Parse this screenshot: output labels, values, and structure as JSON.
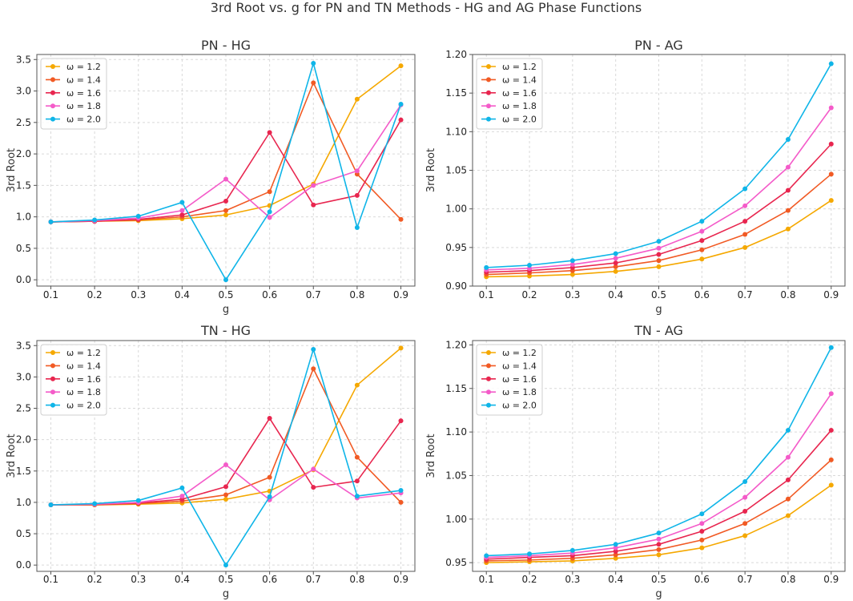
{
  "figure": {
    "title": "3rd Root vs. g for PN and TN Methods - HG and AG Phase Functions"
  },
  "series_colors": [
    "#f5a800",
    "#f15a24",
    "#e8264f",
    "#f45bc9",
    "#0fb5e8"
  ],
  "chart_data": [
    {
      "type": "line",
      "title": "PN - HG",
      "xlabel": "g",
      "ylabel": "3rd Root",
      "x": [
        0.1,
        0.2,
        0.3,
        0.4,
        0.5,
        0.6,
        0.7,
        0.8,
        0.9
      ],
      "x_ticks": [
        "0.1",
        "0.2",
        "0.3",
        "0.4",
        "0.5",
        "0.6",
        "0.7",
        "0.8",
        "0.9"
      ],
      "y_ticks": [
        "0.0",
        "0.5",
        "1.0",
        "1.5",
        "2.0",
        "2.5",
        "3.0",
        "3.5"
      ],
      "y_tick_values": [
        0,
        0.5,
        1,
        1.5,
        2,
        2.5,
        3,
        3.5
      ],
      "ylim": [
        -0.1,
        3.58
      ],
      "legend_position": "top-left",
      "series": [
        {
          "name": "ω = 1.2",
          "values": [
            0.92,
            0.93,
            0.94,
            0.97,
            1.03,
            1.18,
            1.52,
            2.87,
            3.4
          ]
        },
        {
          "name": "ω = 1.4",
          "values": [
            0.92,
            0.93,
            0.95,
            1.0,
            1.1,
            1.4,
            3.13,
            1.68,
            0.96
          ]
        },
        {
          "name": "ω = 1.6",
          "values": [
            0.92,
            0.93,
            0.96,
            1.03,
            1.25,
            2.34,
            1.19,
            1.34,
            2.54
          ]
        },
        {
          "name": "ω = 1.8",
          "values": [
            0.92,
            0.94,
            0.98,
            1.1,
            1.6,
            0.99,
            1.5,
            1.73,
            2.78
          ]
        },
        {
          "name": "ω = 2.0",
          "values": [
            0.92,
            0.95,
            1.01,
            1.23,
            0.0,
            1.08,
            3.44,
            0.83,
            2.79
          ]
        }
      ]
    },
    {
      "type": "line",
      "title": "PN - AG",
      "xlabel": "g",
      "ylabel": "3rd Root",
      "x": [
        0.1,
        0.2,
        0.3,
        0.4,
        0.5,
        0.6,
        0.7,
        0.8,
        0.9
      ],
      "x_ticks": [
        "0.1",
        "0.2",
        "0.3",
        "0.4",
        "0.5",
        "0.6",
        "0.7",
        "0.8",
        "0.9"
      ],
      "y_ticks": [
        "0.90",
        "0.95",
        "1.00",
        "1.05",
        "1.10",
        "1.15",
        "1.20"
      ],
      "y_tick_values": [
        0.9,
        0.95,
        1.0,
        1.05,
        1.1,
        1.15,
        1.2
      ],
      "ylim": [
        0.9,
        1.2
      ],
      "legend_position": "top-left",
      "series": [
        {
          "name": "ω = 1.2",
          "values": [
            0.912,
            0.913,
            0.915,
            0.919,
            0.925,
            0.935,
            0.95,
            0.974,
            1.011
          ]
        },
        {
          "name": "ω = 1.4",
          "values": [
            0.915,
            0.917,
            0.92,
            0.925,
            0.933,
            0.947,
            0.967,
            0.998,
            1.045
          ]
        },
        {
          "name": "ω = 1.6",
          "values": [
            0.918,
            0.92,
            0.924,
            0.93,
            0.941,
            0.959,
            0.984,
            1.024,
            1.084
          ]
        },
        {
          "name": "ω = 1.8",
          "values": [
            0.921,
            0.923,
            0.928,
            0.936,
            0.949,
            0.971,
            1.004,
            1.054,
            1.131
          ]
        },
        {
          "name": "ω = 2.0",
          "values": [
            0.924,
            0.927,
            0.933,
            0.942,
            0.958,
            0.984,
            1.026,
            1.09,
            1.188
          ]
        }
      ]
    },
    {
      "type": "line",
      "title": "TN - HG",
      "xlabel": "g",
      "ylabel": "3rd Root",
      "x": [
        0.1,
        0.2,
        0.3,
        0.4,
        0.5,
        0.6,
        0.7,
        0.8,
        0.9
      ],
      "x_ticks": [
        "0.1",
        "0.2",
        "0.3",
        "0.4",
        "0.5",
        "0.6",
        "0.7",
        "0.8",
        "0.9"
      ],
      "y_ticks": [
        "0.0",
        "0.5",
        "1.0",
        "1.5",
        "2.0",
        "2.5",
        "3.0",
        "3.5"
      ],
      "y_tick_values": [
        0,
        0.5,
        1,
        1.5,
        2,
        2.5,
        3,
        3.5
      ],
      "ylim": [
        -0.1,
        3.58
      ],
      "legend_position": "top-left",
      "series": [
        {
          "name": "ω = 1.2",
          "values": [
            0.96,
            0.96,
            0.97,
            0.99,
            1.05,
            1.18,
            1.52,
            2.87,
            3.46
          ]
        },
        {
          "name": "ω = 1.4",
          "values": [
            0.96,
            0.96,
            0.98,
            1.02,
            1.12,
            1.4,
            3.13,
            1.72,
            1.0
          ]
        },
        {
          "name": "ω = 1.6",
          "values": [
            0.96,
            0.97,
            0.99,
            1.05,
            1.25,
            2.34,
            1.24,
            1.34,
            2.3
          ]
        },
        {
          "name": "ω = 1.8",
          "values": [
            0.96,
            0.97,
            1.0,
            1.1,
            1.6,
            1.04,
            1.53,
            1.07,
            1.15
          ]
        },
        {
          "name": "ω = 2.0",
          "values": [
            0.96,
            0.98,
            1.03,
            1.23,
            0.0,
            1.09,
            3.44,
            1.1,
            1.19
          ]
        }
      ]
    },
    {
      "type": "line",
      "title": "TN - AG",
      "xlabel": "g",
      "ylabel": "3rd Root",
      "x": [
        0.1,
        0.2,
        0.3,
        0.4,
        0.5,
        0.6,
        0.7,
        0.8,
        0.9
      ],
      "x_ticks": [
        "0.1",
        "0.2",
        "0.3",
        "0.4",
        "0.5",
        "0.6",
        "0.7",
        "0.8",
        "0.9"
      ],
      "y_ticks": [
        "0.95",
        "1.00",
        "1.05",
        "1.10",
        "1.15",
        "1.20"
      ],
      "y_tick_values": [
        0.95,
        1.0,
        1.05,
        1.1,
        1.15,
        1.2
      ],
      "ylim": [
        0.94,
        1.205
      ],
      "legend_position": "top-left",
      "series": [
        {
          "name": "ω = 1.2",
          "values": [
            0.95,
            0.951,
            0.952,
            0.955,
            0.959,
            0.967,
            0.981,
            1.004,
            1.039
          ]
        },
        {
          "name": "ω = 1.4",
          "values": [
            0.952,
            0.953,
            0.955,
            0.959,
            0.965,
            0.976,
            0.995,
            1.023,
            1.068
          ]
        },
        {
          "name": "ω = 1.6",
          "values": [
            0.954,
            0.956,
            0.958,
            0.963,
            0.971,
            0.986,
            1.009,
            1.045,
            1.102
          ]
        },
        {
          "name": "ω = 1.8",
          "values": [
            0.956,
            0.958,
            0.961,
            0.967,
            0.977,
            0.995,
            1.025,
            1.071,
            1.144
          ]
        },
        {
          "name": "ω = 2.0",
          "values": [
            0.958,
            0.96,
            0.964,
            0.971,
            0.984,
            1.006,
            1.043,
            1.102,
            1.197
          ]
        }
      ]
    }
  ]
}
